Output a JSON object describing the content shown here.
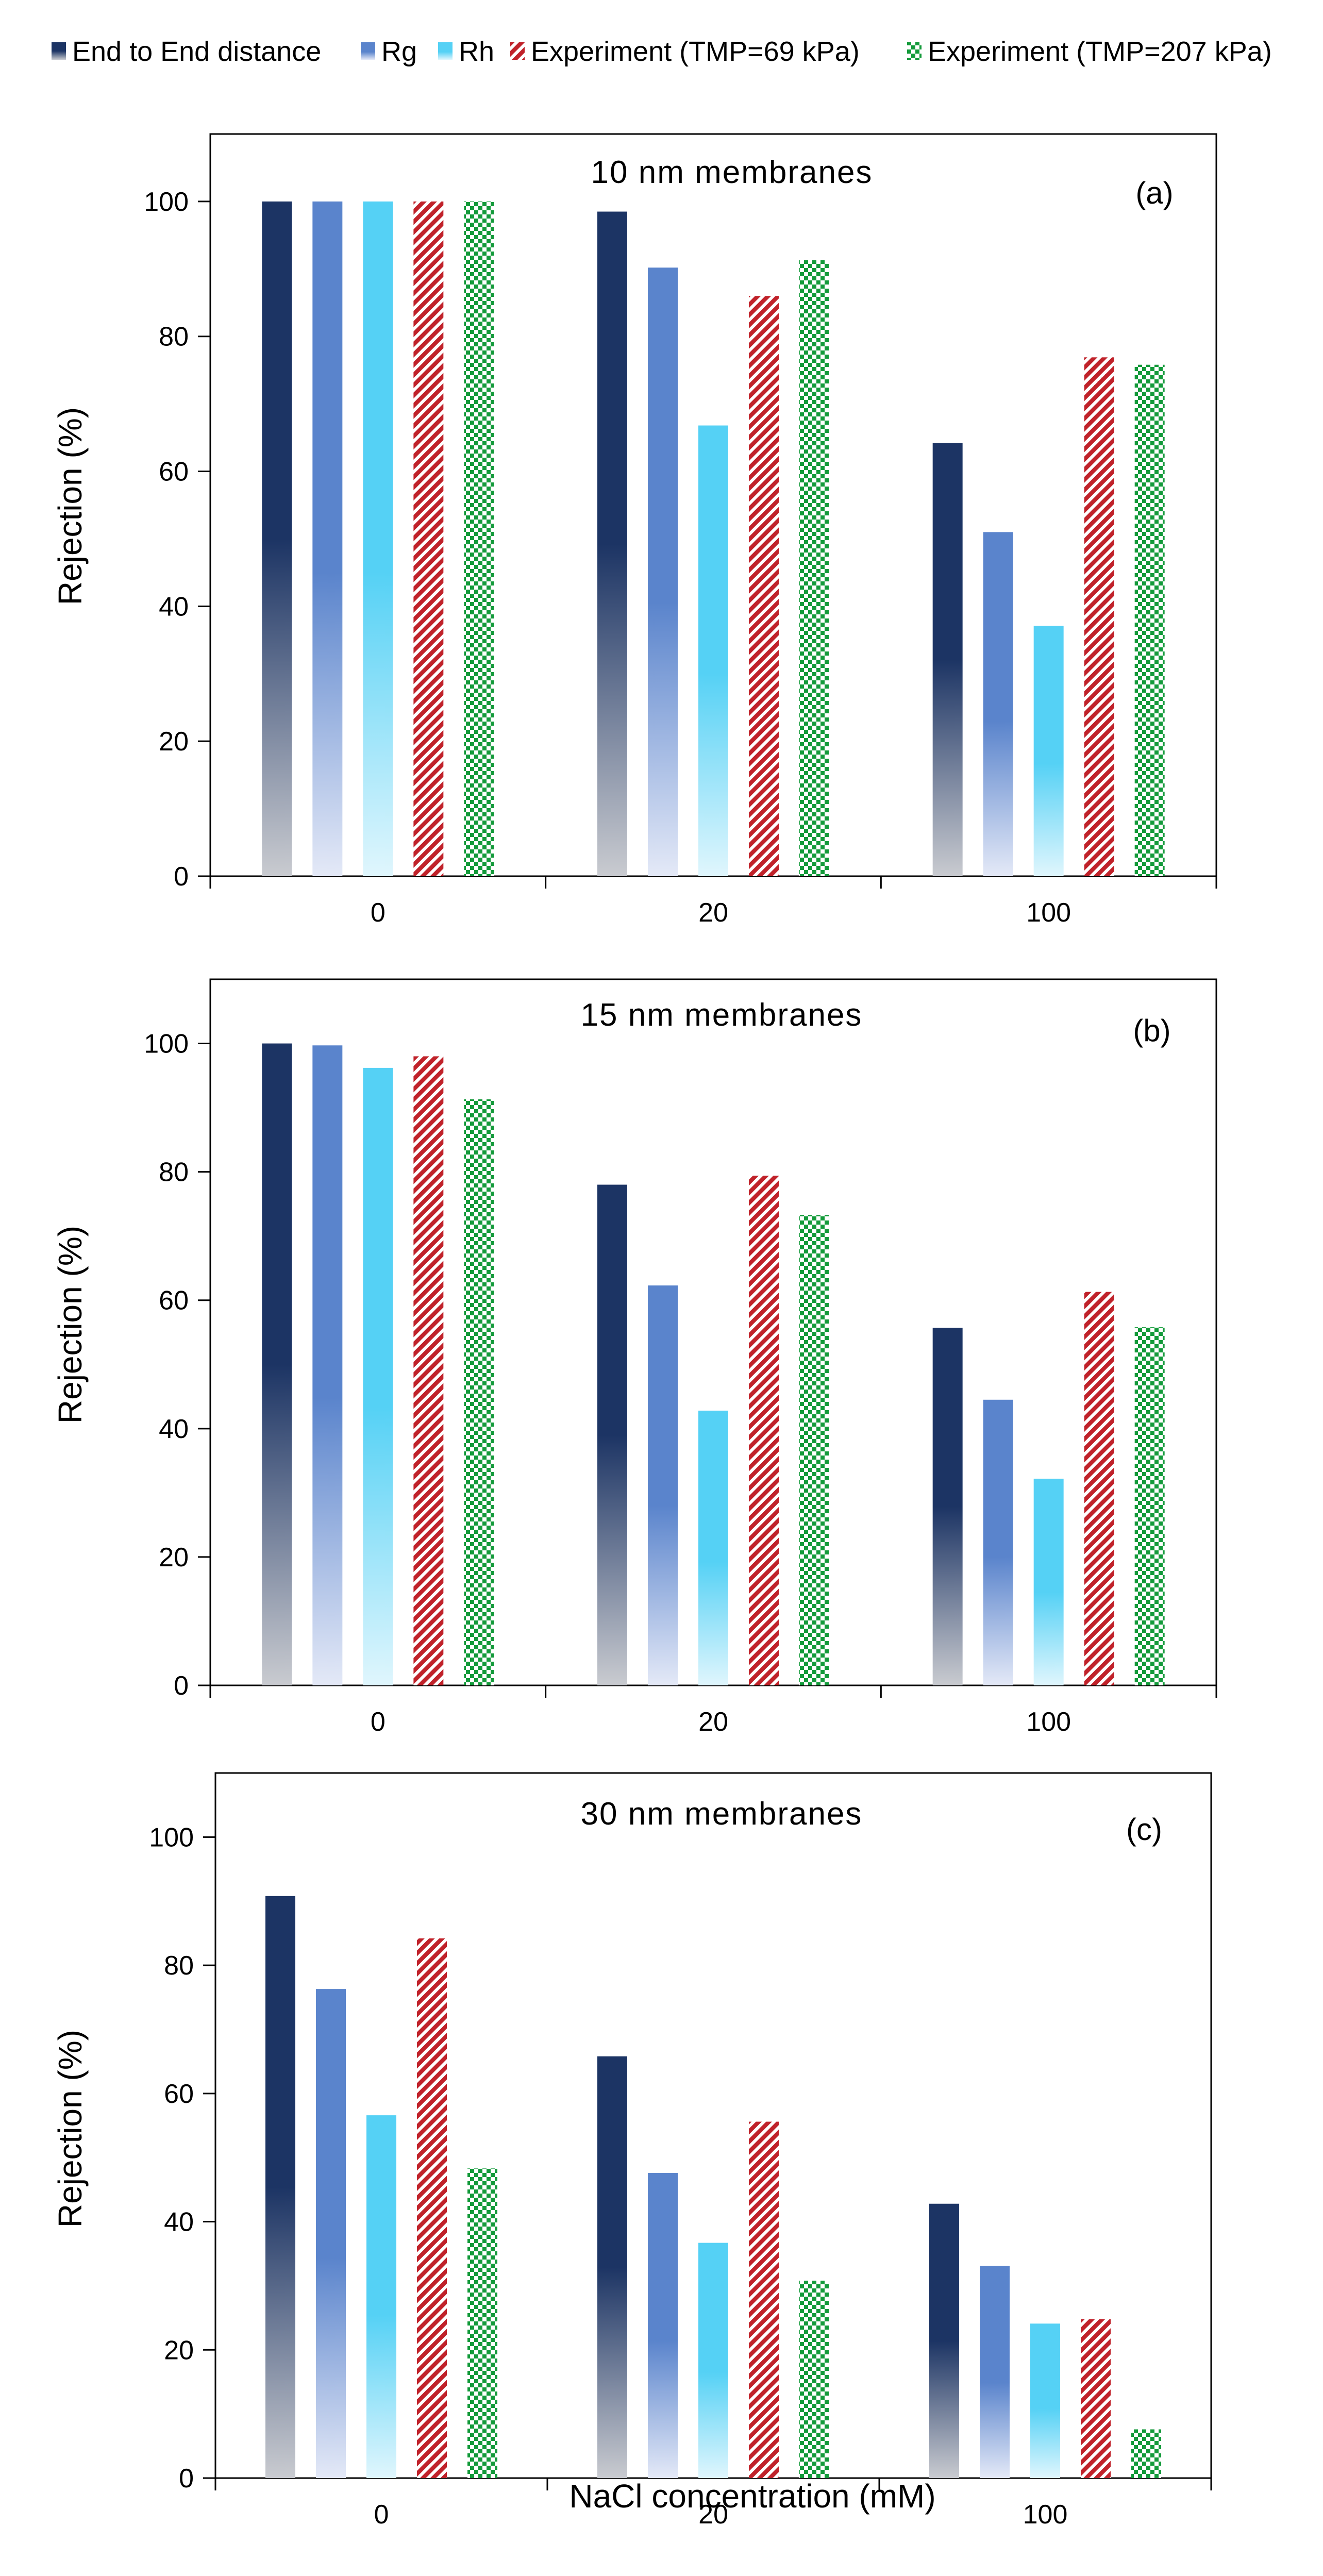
{
  "chart_data": [
    {
      "type": "bar",
      "title": "10 nm membranes",
      "panel_label": "(a)",
      "xlabel": "",
      "ylabel": "Rejection (%)",
      "ylim": [
        0,
        110
      ],
      "yticks": [
        0,
        20,
        40,
        60,
        80,
        100
      ],
      "categories": [
        "0",
        "20",
        "100"
      ],
      "series": [
        {
          "name": "End to End distance",
          "values": [
            100,
            98.5,
            64.2
          ]
        },
        {
          "name": "Rg",
          "values": [
            100,
            90.2,
            51
          ]
        },
        {
          "name": "Rh",
          "values": [
            100,
            66.8,
            37.1
          ]
        },
        {
          "name": "Experiment (TMP=69 kPa)",
          "values": [
            100,
            86,
            76.9
          ]
        },
        {
          "name": "Experiment (TMP=207 kPa)",
          "values": [
            100,
            91.3,
            75.8
          ]
        }
      ]
    },
    {
      "type": "bar",
      "title": "15 nm membranes",
      "panel_label": "(b)",
      "xlabel": "",
      "ylabel": "Rejection (%)",
      "ylim": [
        0,
        110
      ],
      "yticks": [
        0,
        20,
        40,
        60,
        80,
        100
      ],
      "categories": [
        "0",
        "20",
        "100"
      ],
      "series": [
        {
          "name": "End to End distance",
          "values": [
            100,
            78,
            55.7
          ]
        },
        {
          "name": "Rg",
          "values": [
            99.7,
            62.3,
            44.5
          ]
        },
        {
          "name": "Rh",
          "values": [
            96.2,
            42.8,
            32.2
          ]
        },
        {
          "name": "Experiment (TMP=69 kPa)",
          "values": [
            98,
            79.4,
            61.3
          ]
        },
        {
          "name": "Experiment (TMP=207 kPa)",
          "values": [
            91.3,
            73.3,
            55.8
          ]
        }
      ]
    },
    {
      "type": "bar",
      "title": "30 nm membranes",
      "panel_label": "(c)",
      "xlabel": "NaCl concentration (mM)",
      "ylabel": "Rejection (%)",
      "ylim": [
        0,
        110
      ],
      "yticks": [
        0,
        20,
        40,
        60,
        80,
        100
      ],
      "categories": [
        "0",
        "20",
        "100"
      ],
      "series": [
        {
          "name": "End to End distance",
          "values": [
            90.8,
            65.8,
            42.8
          ]
        },
        {
          "name": "Rg",
          "values": [
            76.3,
            47.6,
            33.1
          ]
        },
        {
          "name": "Rh",
          "values": [
            56.6,
            36.7,
            24.1
          ]
        },
        {
          "name": "Experiment (TMP=69 kPa)",
          "values": [
            84.2,
            55.6,
            24.8
          ]
        },
        {
          "name": "Experiment (TMP=207 kPa)",
          "values": [
            48.3,
            30.8,
            7.6
          ]
        }
      ]
    }
  ],
  "legend": {
    "placement": "top",
    "items": [
      {
        "label": "End to End distance",
        "fill": "grad-navy",
        "color": "#1c3464"
      },
      {
        "label": "Rg",
        "fill": "grad-blue",
        "color": "#5a84cc"
      },
      {
        "label": "Rh",
        "fill": "grad-cyan",
        "color": "#55d1f5"
      },
      {
        "label": "Experiment (TMP=69 kPa)",
        "fill": "pat-red",
        "color": "#c0222a"
      },
      {
        "label": "Experiment (TMP=207 kPa)",
        "fill": "pat-green",
        "color": "#139a3a"
      }
    ]
  },
  "colors": {
    "navy_top": "#1c3464",
    "navy_bottom": "#c9cbd0",
    "blue_top": "#5a84cc",
    "blue_bottom": "#e4e9f7",
    "cyan_top": "#55d1f5",
    "cyan_bottom": "#e0f6fd",
    "red": "#c0222a",
    "green": "#139a3a",
    "axis": "#000000"
  }
}
